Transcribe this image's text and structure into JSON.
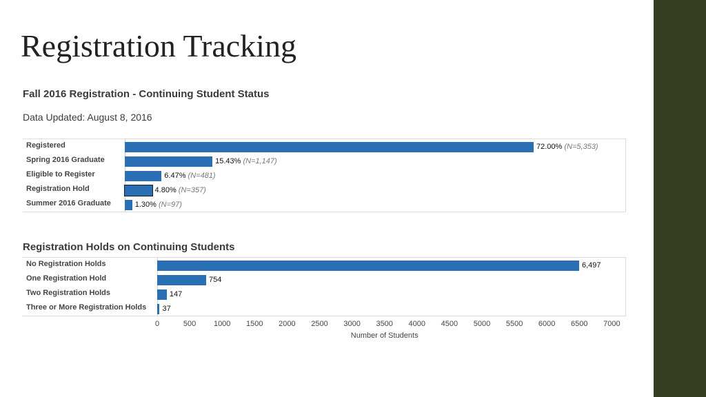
{
  "slide": {
    "title": "Registration Tracking"
  },
  "chart_data": [
    {
      "type": "bar",
      "orientation": "horizontal",
      "title": "Fall 2016 Registration - Continuing Student Status",
      "subtitle": "Data Updated: August 8, 2016",
      "categories": [
        "Registered",
        "Spring 2016 Graduate",
        "Eligible to Register",
        "Registration Hold",
        "Summer 2016 Graduate"
      ],
      "values": [
        72.0,
        15.43,
        6.47,
        4.8,
        1.3
      ],
      "data_labels": [
        "72.00%",
        "15.43%",
        "6.47%",
        "4.80%",
        "1.30%"
      ],
      "n_labels": [
        "(N=5,353)",
        "(N=1,147)",
        "(N=481)",
        "(N=357)",
        "(N=97)"
      ],
      "selected_category": "Registration Hold",
      "xlim": [
        0,
        100
      ]
    },
    {
      "type": "bar",
      "orientation": "horizontal",
      "title": "Registration Holds on Continuing Students",
      "categories": [
        "No Registration Holds",
        "One Registration Hold",
        "Two Registration Holds",
        "Three or More Registration Holds"
      ],
      "values": [
        6497,
        754,
        147,
        37
      ],
      "data_labels": [
        "6,497",
        "754",
        "147",
        "37"
      ],
      "xlabel": "Number of Students",
      "xlim": [
        0,
        7000
      ],
      "xticks": [
        0,
        500,
        1000,
        1500,
        2000,
        2500,
        3000,
        3500,
        4000,
        4500,
        5000,
        5500,
        6000,
        6500,
        7000
      ],
      "xtick_labels": [
        "0",
        "500",
        "1000",
        "1500",
        "2000",
        "2500",
        "3000",
        "3500",
        "4000",
        "4500",
        "5000",
        "5500",
        "6000",
        "6500",
        "7000"
      ]
    }
  ],
  "colors": {
    "bar": "#2a6fb3",
    "sidebar": "#353e21"
  }
}
